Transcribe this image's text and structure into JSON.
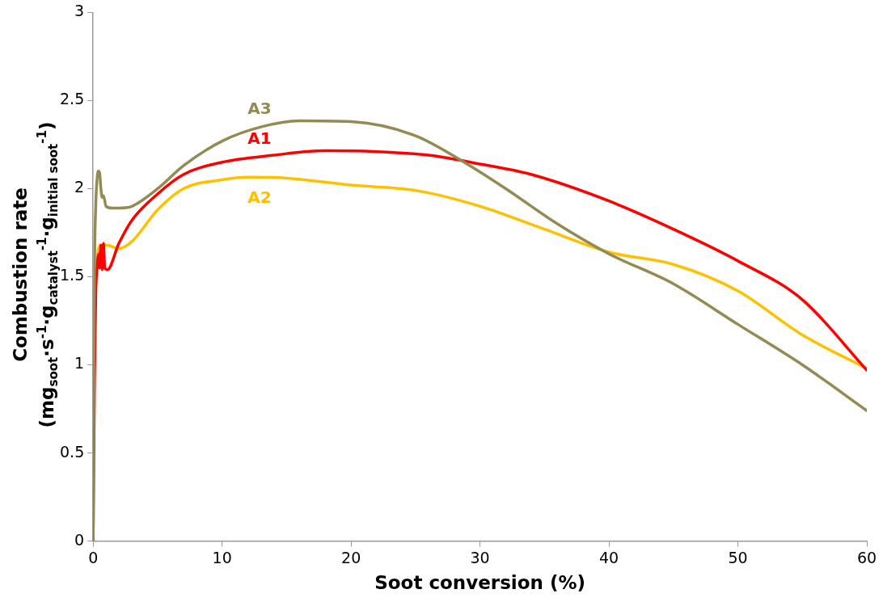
{
  "chart_data": {
    "type": "line",
    "xlabel": "Soot conversion (%)",
    "ylabel": "Combustion rate\n(mg$_{soot}$·s$^{-1}$·g$_{catalyst}$$^{-1}$·g$_{initial soot}$$^{-1}$)",
    "xlim": [
      0,
      60
    ],
    "xticks": [
      0,
      10,
      20,
      30,
      40,
      50,
      60
    ],
    "ylim": [
      0,
      3
    ],
    "yticks": [
      0,
      0.5,
      1,
      1.5,
      2,
      2.5,
      3
    ],
    "grid": false,
    "legend": false,
    "marker": "none",
    "line_style": "solid",
    "series": [
      {
        "name": "A3",
        "color": "#948a54",
        "x": [
          0,
          0.1,
          0.2,
          0.3,
          0.4,
          0.5,
          0.6,
          0.7,
          0.8,
          1,
          1.5,
          2,
          3,
          5,
          7,
          10,
          13,
          16,
          20,
          25,
          29,
          32,
          36,
          40,
          45,
          50,
          55,
          60
        ],
        "values": [
          0,
          1.5,
          1.9,
          2.05,
          2.1,
          2.09,
          2.0,
          1.95,
          1.96,
          1.9,
          1.89,
          1.89,
          1.9,
          2.0,
          2.13,
          2.27,
          2.35,
          2.385,
          2.38,
          2.3,
          2.14,
          2.0,
          1.8,
          1.63,
          1.46,
          1.23,
          1.0,
          0.74
        ]
      },
      {
        "name": "A1",
        "color": "#ff0000",
        "x": [
          0,
          0.1,
          0.2,
          0.3,
          0.45,
          0.5,
          0.6,
          0.7,
          0.8,
          0.9,
          1.1,
          2,
          3,
          5,
          7,
          10,
          14,
          18,
          22,
          26,
          30,
          34,
          40,
          45,
          50,
          55,
          60
        ],
        "values": [
          0,
          0.9,
          1.4,
          1.55,
          1.63,
          1.55,
          1.68,
          1.54,
          1.69,
          1.55,
          1.54,
          1.69,
          1.82,
          1.97,
          2.08,
          2.15,
          2.19,
          2.215,
          2.21,
          2.19,
          2.14,
          2.08,
          1.93,
          1.77,
          1.59,
          1.37,
          0.97
        ]
      },
      {
        "name": "A2",
        "color": "#ffc000",
        "x": [
          0,
          0.1,
          0.3,
          0.6,
          1,
          2,
          3,
          5,
          7,
          10,
          12,
          15,
          20,
          25,
          30,
          35,
          40,
          45,
          50,
          55,
          60
        ],
        "values": [
          1,
          1.35,
          1.6,
          1.68,
          1.68,
          1.66,
          1.7,
          1.88,
          2.0,
          2.05,
          2.065,
          2.06,
          2.02,
          1.99,
          1.9,
          1.77,
          1.64,
          1.57,
          1.42,
          1.17,
          0.98
        ]
      }
    ]
  }
}
